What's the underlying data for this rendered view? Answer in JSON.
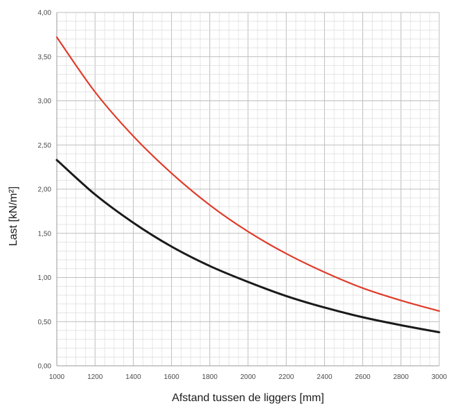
{
  "chart_data": {
    "type": "line",
    "xlabel": "Afstand tussen de liggers [mm]",
    "ylabel": "Last [kN/m²]",
    "xlim": [
      1000,
      3000
    ],
    "ylim": [
      0,
      4
    ],
    "x_ticks": [
      "1000",
      "1200",
      "1400",
      "1600",
      "1800",
      "2000",
      "2200",
      "2400",
      "2600",
      "2800",
      "3000"
    ],
    "y_ticks": [
      "0,00",
      "0,50",
      "1,00",
      "1,50",
      "2,00",
      "2,50",
      "3,00",
      "3,50",
      "4,00"
    ],
    "grid": true,
    "x": [
      1000,
      1200,
      1400,
      1600,
      1800,
      2000,
      2200,
      2400,
      2600,
      2800,
      3000
    ],
    "series": [
      {
        "color": "#e03b2a",
        "values": [
          3.72,
          3.1,
          2.6,
          2.18,
          1.82,
          1.52,
          1.27,
          1.06,
          0.88,
          0.74,
          0.62
        ]
      },
      {
        "color": "#1a1a1a",
        "values": [
          2.33,
          1.94,
          1.62,
          1.35,
          1.13,
          0.95,
          0.79,
          0.66,
          0.55,
          0.46,
          0.38
        ]
      }
    ]
  }
}
